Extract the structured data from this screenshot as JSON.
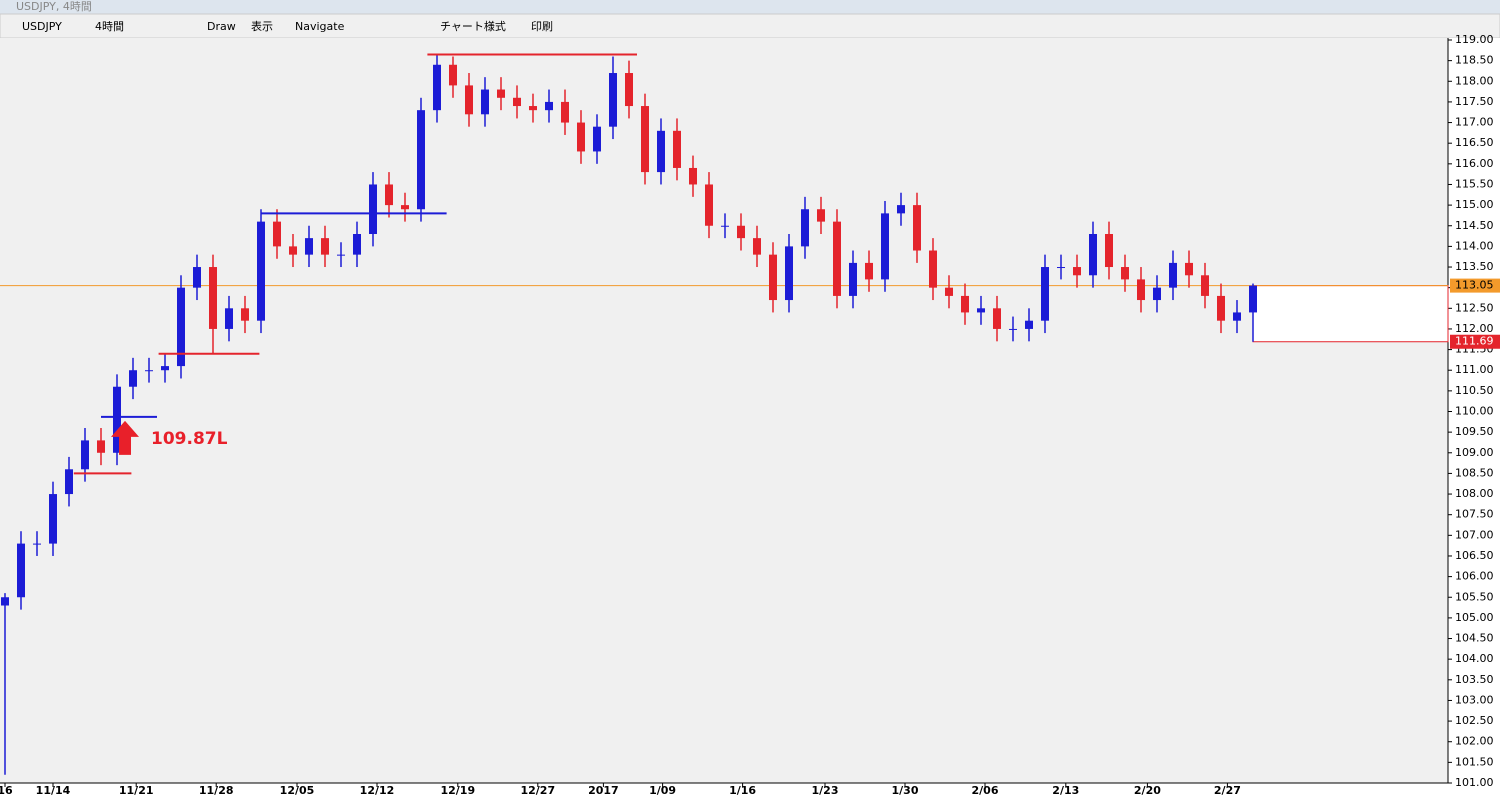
{
  "window": {
    "title": "USDJPY, 4時間"
  },
  "toolbar": {
    "items": [
      "USDJPY",
      "4時間",
      "Draw",
      "表示",
      "Navigate",
      "チャート様式",
      "印刷"
    ]
  },
  "chart_data": {
    "type": "candlestick",
    "x": [
      0,
      1,
      2,
      3,
      4,
      5,
      6,
      7,
      8,
      9,
      10,
      11,
      12,
      13,
      14,
      15,
      16,
      17,
      18,
      19,
      20,
      21,
      22,
      23,
      24,
      25,
      26,
      27,
      28,
      29,
      30,
      31,
      32,
      33,
      34,
      35,
      36,
      37,
      38,
      39,
      40,
      41,
      42,
      43,
      44,
      45,
      46,
      47,
      48,
      49,
      50,
      51,
      52,
      53,
      54,
      55,
      56,
      57,
      58,
      59,
      60,
      61,
      62,
      63,
      64,
      65,
      66,
      67,
      68,
      69,
      70,
      71,
      72,
      73,
      74,
      75,
      76,
      77,
      78
    ],
    "open": [
      105.3,
      105.5,
      106.8,
      106.8,
      108.0,
      108.6,
      109.3,
      109.0,
      110.6,
      111.0,
      111.0,
      111.1,
      113.0,
      113.5,
      112.0,
      112.5,
      112.2,
      114.6,
      114.0,
      113.8,
      114.2,
      113.8,
      113.8,
      114.3,
      115.5,
      115.0,
      114.9,
      117.3,
      118.4,
      117.9,
      117.2,
      117.8,
      117.6,
      117.4,
      117.3,
      117.5,
      117.0,
      116.3,
      116.9,
      118.2,
      117.4,
      115.8,
      116.8,
      115.9,
      115.5,
      114.5,
      114.5,
      114.2,
      113.8,
      112.7,
      114.0,
      114.9,
      114.6,
      112.8,
      113.6,
      113.2,
      114.8,
      115.0,
      113.9,
      113.0,
      112.8,
      112.4,
      112.5,
      112.0,
      112.0,
      112.2,
      113.5,
      113.5,
      113.3,
      114.3,
      113.5,
      113.2,
      112.7,
      113.0,
      113.6,
      113.3,
      112.8,
      112.2,
      112.4
    ],
    "high": [
      105.6,
      107.1,
      107.1,
      108.3,
      108.9,
      109.6,
      109.6,
      110.9,
      111.3,
      111.3,
      111.4,
      113.3,
      113.8,
      113.8,
      112.8,
      112.8,
      114.9,
      114.9,
      114.3,
      114.5,
      114.5,
      114.1,
      114.6,
      115.8,
      115.8,
      115.3,
      117.6,
      118.65,
      118.6,
      118.2,
      118.1,
      118.1,
      117.9,
      117.7,
      117.8,
      117.8,
      117.3,
      117.2,
      118.6,
      118.5,
      117.7,
      117.1,
      117.1,
      116.2,
      115.8,
      114.8,
      114.8,
      114.5,
      114.1,
      114.3,
      115.2,
      115.2,
      114.9,
      113.9,
      113.9,
      115.1,
      115.3,
      115.3,
      114.2,
      113.3,
      113.1,
      112.8,
      112.8,
      112.3,
      112.5,
      113.8,
      113.8,
      113.8,
      114.6,
      114.6,
      113.8,
      113.5,
      113.3,
      113.9,
      113.9,
      113.6,
      113.1,
      112.7,
      113.1
    ],
    "low": [
      101.2,
      105.2,
      106.5,
      106.5,
      107.7,
      108.3,
      108.7,
      108.7,
      110.3,
      110.7,
      110.7,
      110.8,
      112.7,
      111.4,
      111.7,
      111.9,
      111.9,
      113.7,
      113.5,
      113.5,
      113.5,
      113.5,
      113.5,
      114.0,
      114.7,
      114.6,
      114.6,
      117.0,
      117.6,
      116.9,
      116.9,
      117.3,
      117.1,
      117.0,
      117.0,
      116.7,
      116.0,
      116.0,
      116.6,
      117.1,
      115.5,
      115.5,
      115.6,
      115.2,
      114.2,
      114.2,
      113.9,
      113.5,
      112.4,
      112.4,
      113.7,
      114.3,
      112.5,
      112.5,
      112.9,
      112.9,
      114.5,
      113.6,
      112.7,
      112.5,
      112.1,
      112.1,
      111.7,
      111.7,
      111.7,
      111.9,
      113.2,
      113.0,
      113.0,
      113.2,
      112.9,
      112.4,
      112.4,
      112.7,
      113.0,
      112.5,
      111.9,
      111.9,
      111.69
    ],
    "close": [
      105.5,
      106.8,
      106.8,
      108.0,
      108.6,
      109.3,
      109.0,
      110.6,
      111.0,
      111.0,
      111.1,
      113.0,
      113.5,
      112.0,
      112.5,
      112.2,
      114.6,
      114.0,
      113.8,
      114.2,
      113.8,
      113.8,
      114.3,
      115.5,
      115.0,
      114.9,
      117.3,
      118.4,
      117.9,
      117.2,
      117.8,
      117.6,
      117.4,
      117.3,
      117.5,
      117.0,
      116.3,
      116.9,
      118.2,
      117.4,
      115.8,
      116.8,
      115.9,
      115.5,
      114.5,
      114.5,
      114.2,
      113.8,
      112.7,
      114.0,
      114.9,
      114.6,
      112.8,
      113.6,
      113.2,
      114.8,
      115.0,
      113.9,
      113.0,
      112.8,
      112.4,
      112.5,
      112.0,
      112.0,
      112.2,
      113.5,
      113.5,
      113.3,
      114.3,
      113.5,
      113.2,
      112.7,
      113.0,
      113.6,
      113.3,
      112.8,
      112.2,
      112.4,
      113.05
    ],
    "up_color": "#1c1cd6",
    "down_color": "#e4242c",
    "xlim": [
      -0.3125,
      90.1875
    ],
    "xticks": [
      {
        "value": 0,
        "label": "16"
      },
      {
        "value": 3,
        "label": "11/14"
      },
      {
        "value": 8.2,
        "label": "11/21"
      },
      {
        "value": 13.2,
        "label": "11/28"
      },
      {
        "value": 18.25,
        "label": "12/05"
      },
      {
        "value": 23.25,
        "label": "12/12"
      },
      {
        "value": 28.3,
        "label": "12/19"
      },
      {
        "value": 33.3,
        "label": "12/27"
      },
      {
        "value": 37.4,
        "label": "2017"
      },
      {
        "value": 41.1,
        "label": "1/09"
      },
      {
        "value": 46.1,
        "label": "1/16"
      },
      {
        "value": 51.25,
        "label": "1/23"
      },
      {
        "value": 56.25,
        "label": "1/30"
      },
      {
        "value": 61.25,
        "label": "2/06"
      },
      {
        "value": 66.3,
        "label": "2/13"
      },
      {
        "value": 71.4,
        "label": "2/20"
      },
      {
        "value": 76.4,
        "label": "2/27"
      }
    ],
    "ylim": [
      101,
      119
    ],
    "yticks": [
      {
        "value": 101,
        "label": "101.00"
      },
      {
        "value": 101.5,
        "label": "101.50"
      },
      {
        "value": 102,
        "label": "102.00"
      },
      {
        "value": 102.5,
        "label": "102.50"
      },
      {
        "value": 103,
        "label": "103.00"
      },
      {
        "value": 103.5,
        "label": "103.50"
      },
      {
        "value": 104,
        "label": "104.00"
      },
      {
        "value": 104.5,
        "label": "104.50"
      },
      {
        "value": 105,
        "label": "105.00"
      },
      {
        "value": 105.5,
        "label": "105.50"
      },
      {
        "value": 106,
        "label": "106.00"
      },
      {
        "value": 106.5,
        "label": "106.50"
      },
      {
        "value": 107,
        "label": "107.00"
      },
      {
        "value": 107.5,
        "label": "107.50"
      },
      {
        "value": 108,
        "label": "108.00"
      },
      {
        "value": 108.5,
        "label": "108.50"
      },
      {
        "value": 109,
        "label": "109.00"
      },
      {
        "value": 109.5,
        "label": "109.50"
      },
      {
        "value": 110,
        "label": "110.00"
      },
      {
        "value": 110.5,
        "label": "110.50"
      },
      {
        "value": 111,
        "label": "111.00"
      },
      {
        "value": 111.5,
        "label": "111.50"
      },
      {
        "value": 112,
        "label": "112.00"
      },
      {
        "value": 112.5,
        "label": "112.50"
      },
      {
        "value": 113,
        "label": "113.00"
      },
      {
        "value": 113.5,
        "label": "113.50"
      },
      {
        "value": 114,
        "label": "114.00"
      },
      {
        "value": 114.5,
        "label": "114.50"
      },
      {
        "value": 115,
        "label": "115.00"
      },
      {
        "value": 115.5,
        "label": "115.50"
      },
      {
        "value": 116,
        "label": "116.00"
      },
      {
        "value": 116.5,
        "label": "116.50"
      },
      {
        "value": 117,
        "label": "117.00"
      },
      {
        "value": 117.5,
        "label": "117.50"
      },
      {
        "value": 118,
        "label": "118.00"
      },
      {
        "value": 118.5,
        "label": "118.50"
      },
      {
        "value": 119,
        "label": "119.00"
      }
    ],
    "levels": [
      {
        "value": 118.65,
        "from": 26.4,
        "to": 39.5,
        "color": "#e4242c"
      },
      {
        "value": 114.8,
        "from": 16,
        "to": 27.6,
        "color": "#1c1cd6"
      },
      {
        "value": 111.4,
        "from": 9.6,
        "to": 15.9,
        "color": "#e4242c"
      },
      {
        "value": 109.87,
        "from": 6,
        "to": 9.5,
        "color": "#1c1cd6"
      },
      {
        "value": 108.5,
        "from": 4.3,
        "to": 7.9,
        "color": "#e4242c"
      }
    ],
    "annotation": {
      "text": "109.87L",
      "value": 109.87
    },
    "current_price": {
      "value": 113.05,
      "label": "113.05",
      "color": "#f39a2b"
    },
    "low_price": {
      "value": 111.69,
      "label": "111.69",
      "color": "#e4242c"
    }
  }
}
